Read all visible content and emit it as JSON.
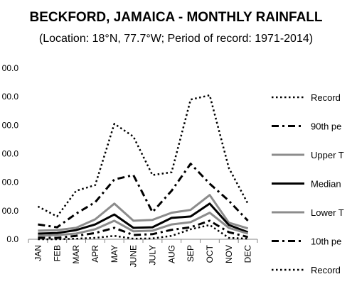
{
  "chart_data": {
    "type": "line",
    "title": "BECKFORD, JAMAICA - MONTHLY RAINFALL",
    "subtitle": "(Location: 18°N, 77.7°W; Period of record: 1971-2014)",
    "y_tick_labels": [
      "0.0",
      "00.0",
      "00.0",
      "00.0",
      "00.0",
      "00.0",
      "00.0"
    ],
    "ylim": [
      0,
      600
    ],
    "grid": false,
    "legend_position": "right",
    "categories": [
      "JAN",
      "FEB",
      "MAR",
      "APR",
      "MAY",
      "JUNE",
      "JULY",
      "AUG",
      "SEP",
      "OCT",
      "NOV",
      "DEC"
    ],
    "series": [
      {
        "name": "Record",
        "color": "#000000",
        "style": "dotted",
        "width": 2.5,
        "values": [
          115,
          80,
          170,
          190,
          405,
          360,
          225,
          235,
          490,
          505,
          250,
          125
        ]
      },
      {
        "name": "90th pe",
        "color": "#000000",
        "style": "dashdot",
        "width": 3,
        "values": [
          52,
          42,
          90,
          130,
          210,
          225,
          95,
          170,
          265,
          195,
          135,
          65
        ]
      },
      {
        "name": "Upper T",
        "color": "#8c8c8c",
        "style": "solid",
        "width": 3,
        "values": [
          30,
          32,
          40,
          70,
          125,
          65,
          68,
          93,
          103,
          155,
          58,
          38
        ]
      },
      {
        "name": "Median",
        "color": "#000000",
        "style": "solid",
        "width": 3,
        "values": [
          20,
          22,
          32,
          52,
          87,
          40,
          42,
          75,
          80,
          125,
          50,
          25
        ]
      },
      {
        "name": "Lower T",
        "color": "#8c8c8c",
        "style": "solid",
        "width": 3,
        "values": [
          12,
          15,
          20,
          35,
          65,
          28,
          30,
          52,
          60,
          93,
          40,
          20
        ]
      },
      {
        "name": "10th pe",
        "color": "#000000",
        "style": "dashdot",
        "width": 3,
        "values": [
          5,
          5,
          12,
          22,
          40,
          15,
          18,
          33,
          42,
          65,
          25,
          8
        ]
      },
      {
        "name": "Record",
        "color": "#000000",
        "style": "dotted",
        "width": 2.5,
        "values": [
          0,
          0,
          2,
          5,
          12,
          2,
          3,
          12,
          35,
          50,
          5,
          2
        ]
      }
    ]
  }
}
